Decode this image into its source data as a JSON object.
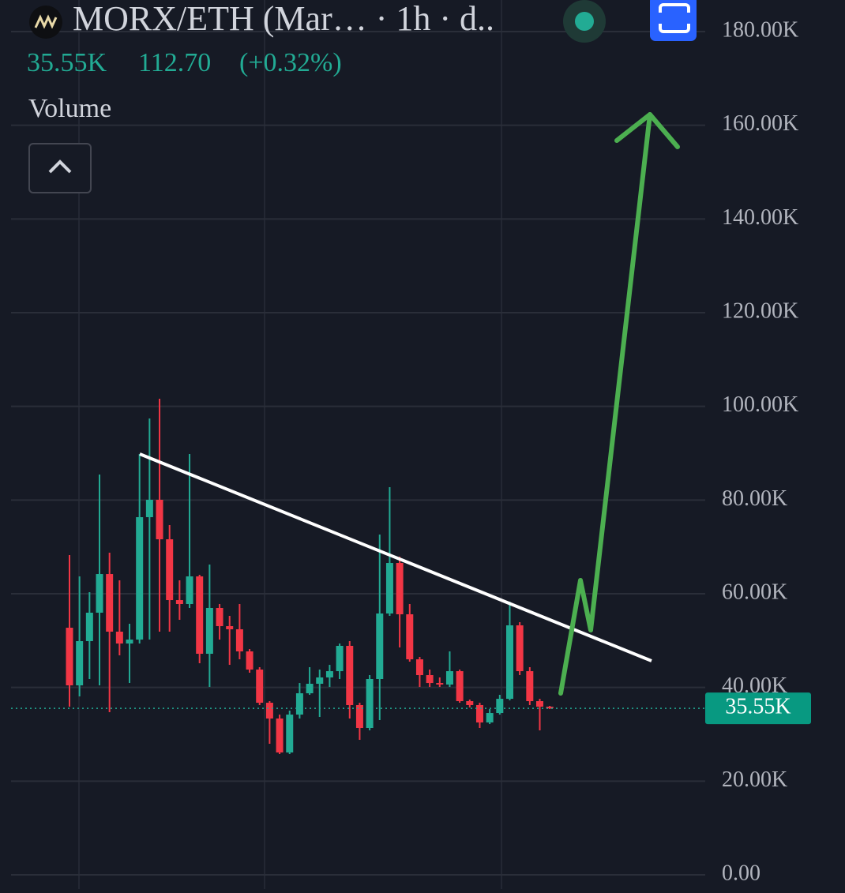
{
  "chart_data": {
    "type": "candlestick",
    "title": "MORX/ETH (Mar… · 1h · d..",
    "last_price": {
      "value": 35550,
      "label": "35.55K"
    },
    "change_label": "112.70",
    "change_pct_label": "(+0.32%)",
    "indicator": "Volume",
    "up_color": "#22ab94",
    "down_color": "#f23645",
    "open": [
      52750,
      40450,
      49890,
      55960,
      64210,
      51910,
      49380,
      50220,
      76350,
      80060,
      71630,
      58650,
      57810,
      63710,
      47190,
      56970,
      53090,
      52420,
      47700,
      43820,
      36740,
      33370,
      26120,
      34210,
      38760,
      40790,
      42140,
      43480,
      48880,
      36240,
      31350,
      41800,
      55790,
      66570,
      55620,
      46010,
      42640,
      40950,
      40620,
      43480,
      37080,
      36240,
      32530,
      34550,
      37580,
      53260,
      43480,
      37080,
      35900
    ],
    "high": [
      68260,
      63710,
      60340,
      85450,
      68760,
      62870,
      53600,
      89830,
      97420,
      101630,
      74660,
      62870,
      89830,
      64050,
      66240,
      57810,
      55280,
      57810,
      48200,
      44330,
      37080,
      34210,
      35060,
      40950,
      44330,
      43820,
      44830,
      49380,
      49890,
      36740,
      42640,
      72640,
      82750,
      67920,
      57810,
      46520,
      43820,
      42140,
      47700,
      43820,
      37420,
      36740,
      35390,
      38430,
      58310,
      53930,
      44330,
      37580,
      36070
    ],
    "low": [
      35900,
      38090,
      41800,
      40450,
      34720,
      46850,
      40950,
      49380,
      50220,
      51910,
      51910,
      54440,
      56970,
      45170,
      40110,
      50220,
      44830,
      46010,
      43150,
      36240,
      27980,
      25790,
      25790,
      33370,
      38430,
      33710,
      40110,
      41800,
      33370,
      28820,
      30840,
      33030,
      55280,
      48540,
      45510,
      40110,
      40110,
      40110,
      40110,
      36740,
      35730,
      31350,
      32190,
      34210,
      37250,
      42640,
      36240,
      30840,
      35390
    ],
    "close": [
      40450,
      49890,
      55960,
      64210,
      51910,
      49380,
      50220,
      76350,
      80060,
      71630,
      58650,
      57810,
      63710,
      47190,
      56970,
      53090,
      52420,
      47700,
      43820,
      36740,
      33370,
      26120,
      34210,
      38760,
      40790,
      42140,
      43480,
      48880,
      36240,
      31350,
      41800,
      55790,
      66570,
      55620,
      46010,
      42640,
      40950,
      40620,
      43480,
      37080,
      36240,
      32530,
      34550,
      37580,
      53260,
      43480,
      37080,
      35900,
      35550
    ],
    "ylim": [
      -3030,
      186740
    ],
    "yticks": [
      {
        "value": 0,
        "label": "0.00"
      },
      {
        "value": 20000,
        "label": "20.00K"
      },
      {
        "value": 40000,
        "label": "40.00K"
      },
      {
        "value": 60000,
        "label": "60.00K"
      },
      {
        "value": 80000,
        "label": "80.00K"
      },
      {
        "value": 100000,
        "label": "100.00K"
      },
      {
        "value": 120000,
        "label": "120.00K"
      },
      {
        "value": 140000,
        "label": "140.00K"
      },
      {
        "value": 160000,
        "label": "160.00K"
      },
      {
        "value": 180000,
        "label": "180.00K"
      }
    ],
    "grid": true
  }
}
